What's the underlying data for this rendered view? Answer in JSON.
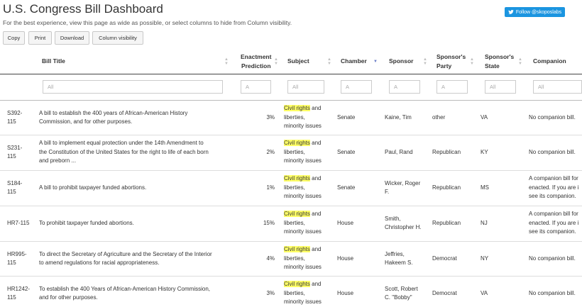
{
  "page": {
    "title": "U.S. Congress Bill Dashboard",
    "subtitle": "For the best experience, view this page as wide as possible, or select columns to hide from Column visibility."
  },
  "twitter": {
    "label": "Follow @skoposlabs"
  },
  "toolbar": {
    "copy": "Copy",
    "print": "Print",
    "download": "Download",
    "column_visibility": "Column visibility"
  },
  "columns": {
    "title": "Bill Title",
    "prediction_1": "Enactment",
    "prediction_2": "Prediction",
    "subject": "Subject",
    "chamber": "Chamber",
    "sponsor": "Sponsor",
    "party_1": "Sponsor's",
    "party_2": "Party",
    "state_1": "Sponsor's",
    "state_2": "State",
    "companion": "Companion"
  },
  "filters": {
    "title": "All",
    "prediction": "A",
    "subject": "All",
    "chamber": "A",
    "sponsor": "A",
    "party": "A",
    "state": "All",
    "companion": "All"
  },
  "rows": [
    {
      "id_1": "S392-",
      "id_2": "115",
      "title_lines": [
        "A bill to establish the 400 years of African-American History",
        "Commission, and for other purposes."
      ],
      "prediction": "3%",
      "subject_hl": "Civil rights",
      "subject_rest": " and",
      "subject_2": "liberties,",
      "subject_3": "minority issues",
      "chamber": "Senate",
      "sponsor_lines": [
        "Kaine, Tim"
      ],
      "party": "other",
      "state": "VA",
      "companion_lines": [
        "No companion bill."
      ]
    },
    {
      "id_1": "S231-",
      "id_2": "115",
      "title_lines": [
        "A bill to implement equal protection under the 14th Amendment to",
        "the Constitution of the United States for the right to life of each born",
        "and preborn ..."
      ],
      "prediction": "2%",
      "subject_hl": "Civil rights",
      "subject_rest": " and",
      "subject_2": "liberties,",
      "subject_3": "minority issues",
      "chamber": "Senate",
      "sponsor_lines": [
        "Paul, Rand"
      ],
      "party": "Republican",
      "state": "KY",
      "companion_lines": [
        "No companion bill."
      ]
    },
    {
      "id_1": "S184-",
      "id_2": "115",
      "title_lines": [
        "A bill to prohibit taxpayer funded abortions."
      ],
      "prediction": "1%",
      "subject_hl": "Civil rights",
      "subject_rest": " and",
      "subject_2": "liberties,",
      "subject_3": "minority issues",
      "chamber": "Senate",
      "sponsor_lines": [
        "Wicker, Roger",
        "F."
      ],
      "party": "Republican",
      "state": "MS",
      "companion_lines": [
        "A companion bill for",
        "enacted. If you are i",
        "see its companion."
      ]
    },
    {
      "id_1": "HR7-115",
      "id_2": "",
      "title_lines": [
        "To prohibit taxpayer funded abortions."
      ],
      "prediction": "15%",
      "subject_hl": "Civil rights",
      "subject_rest": " and",
      "subject_2": "liberties,",
      "subject_3": "minority issues",
      "chamber": "House",
      "sponsor_lines": [
        "Smith,",
        "Christopher H."
      ],
      "party": "Republican",
      "state": "NJ",
      "companion_lines": [
        "A companion bill for",
        "enacted. If you are i",
        "see its companion."
      ]
    },
    {
      "id_1": "HR995-",
      "id_2": "115",
      "title_lines": [
        "To direct the Secretary of Agriculture and the Secretary of the Interior",
        "to amend regulations for racial appropriateness."
      ],
      "prediction": "4%",
      "subject_hl": "Civil rights",
      "subject_rest": " and",
      "subject_2": "liberties,",
      "subject_3": "minority issues",
      "chamber": "House",
      "sponsor_lines": [
        "Jeffries,",
        "Hakeem S."
      ],
      "party": "Democrat",
      "state": "NY",
      "companion_lines": [
        "No companion bill."
      ]
    },
    {
      "id_1": "HR1242-",
      "id_2": "115",
      "title_lines": [
        "To establish the 400 Years of African-American History Commission,",
        "and for other purposes."
      ],
      "prediction": "3%",
      "subject_hl": "Civil rights",
      "subject_rest": " and",
      "subject_2": "liberties,",
      "subject_3": "minority issues",
      "chamber": "House",
      "sponsor_lines": [
        "Scott, Robert",
        "C. \"Bobby\""
      ],
      "party": "Democrat",
      "state": "VA",
      "companion_lines": [
        "No companion bill."
      ]
    }
  ]
}
